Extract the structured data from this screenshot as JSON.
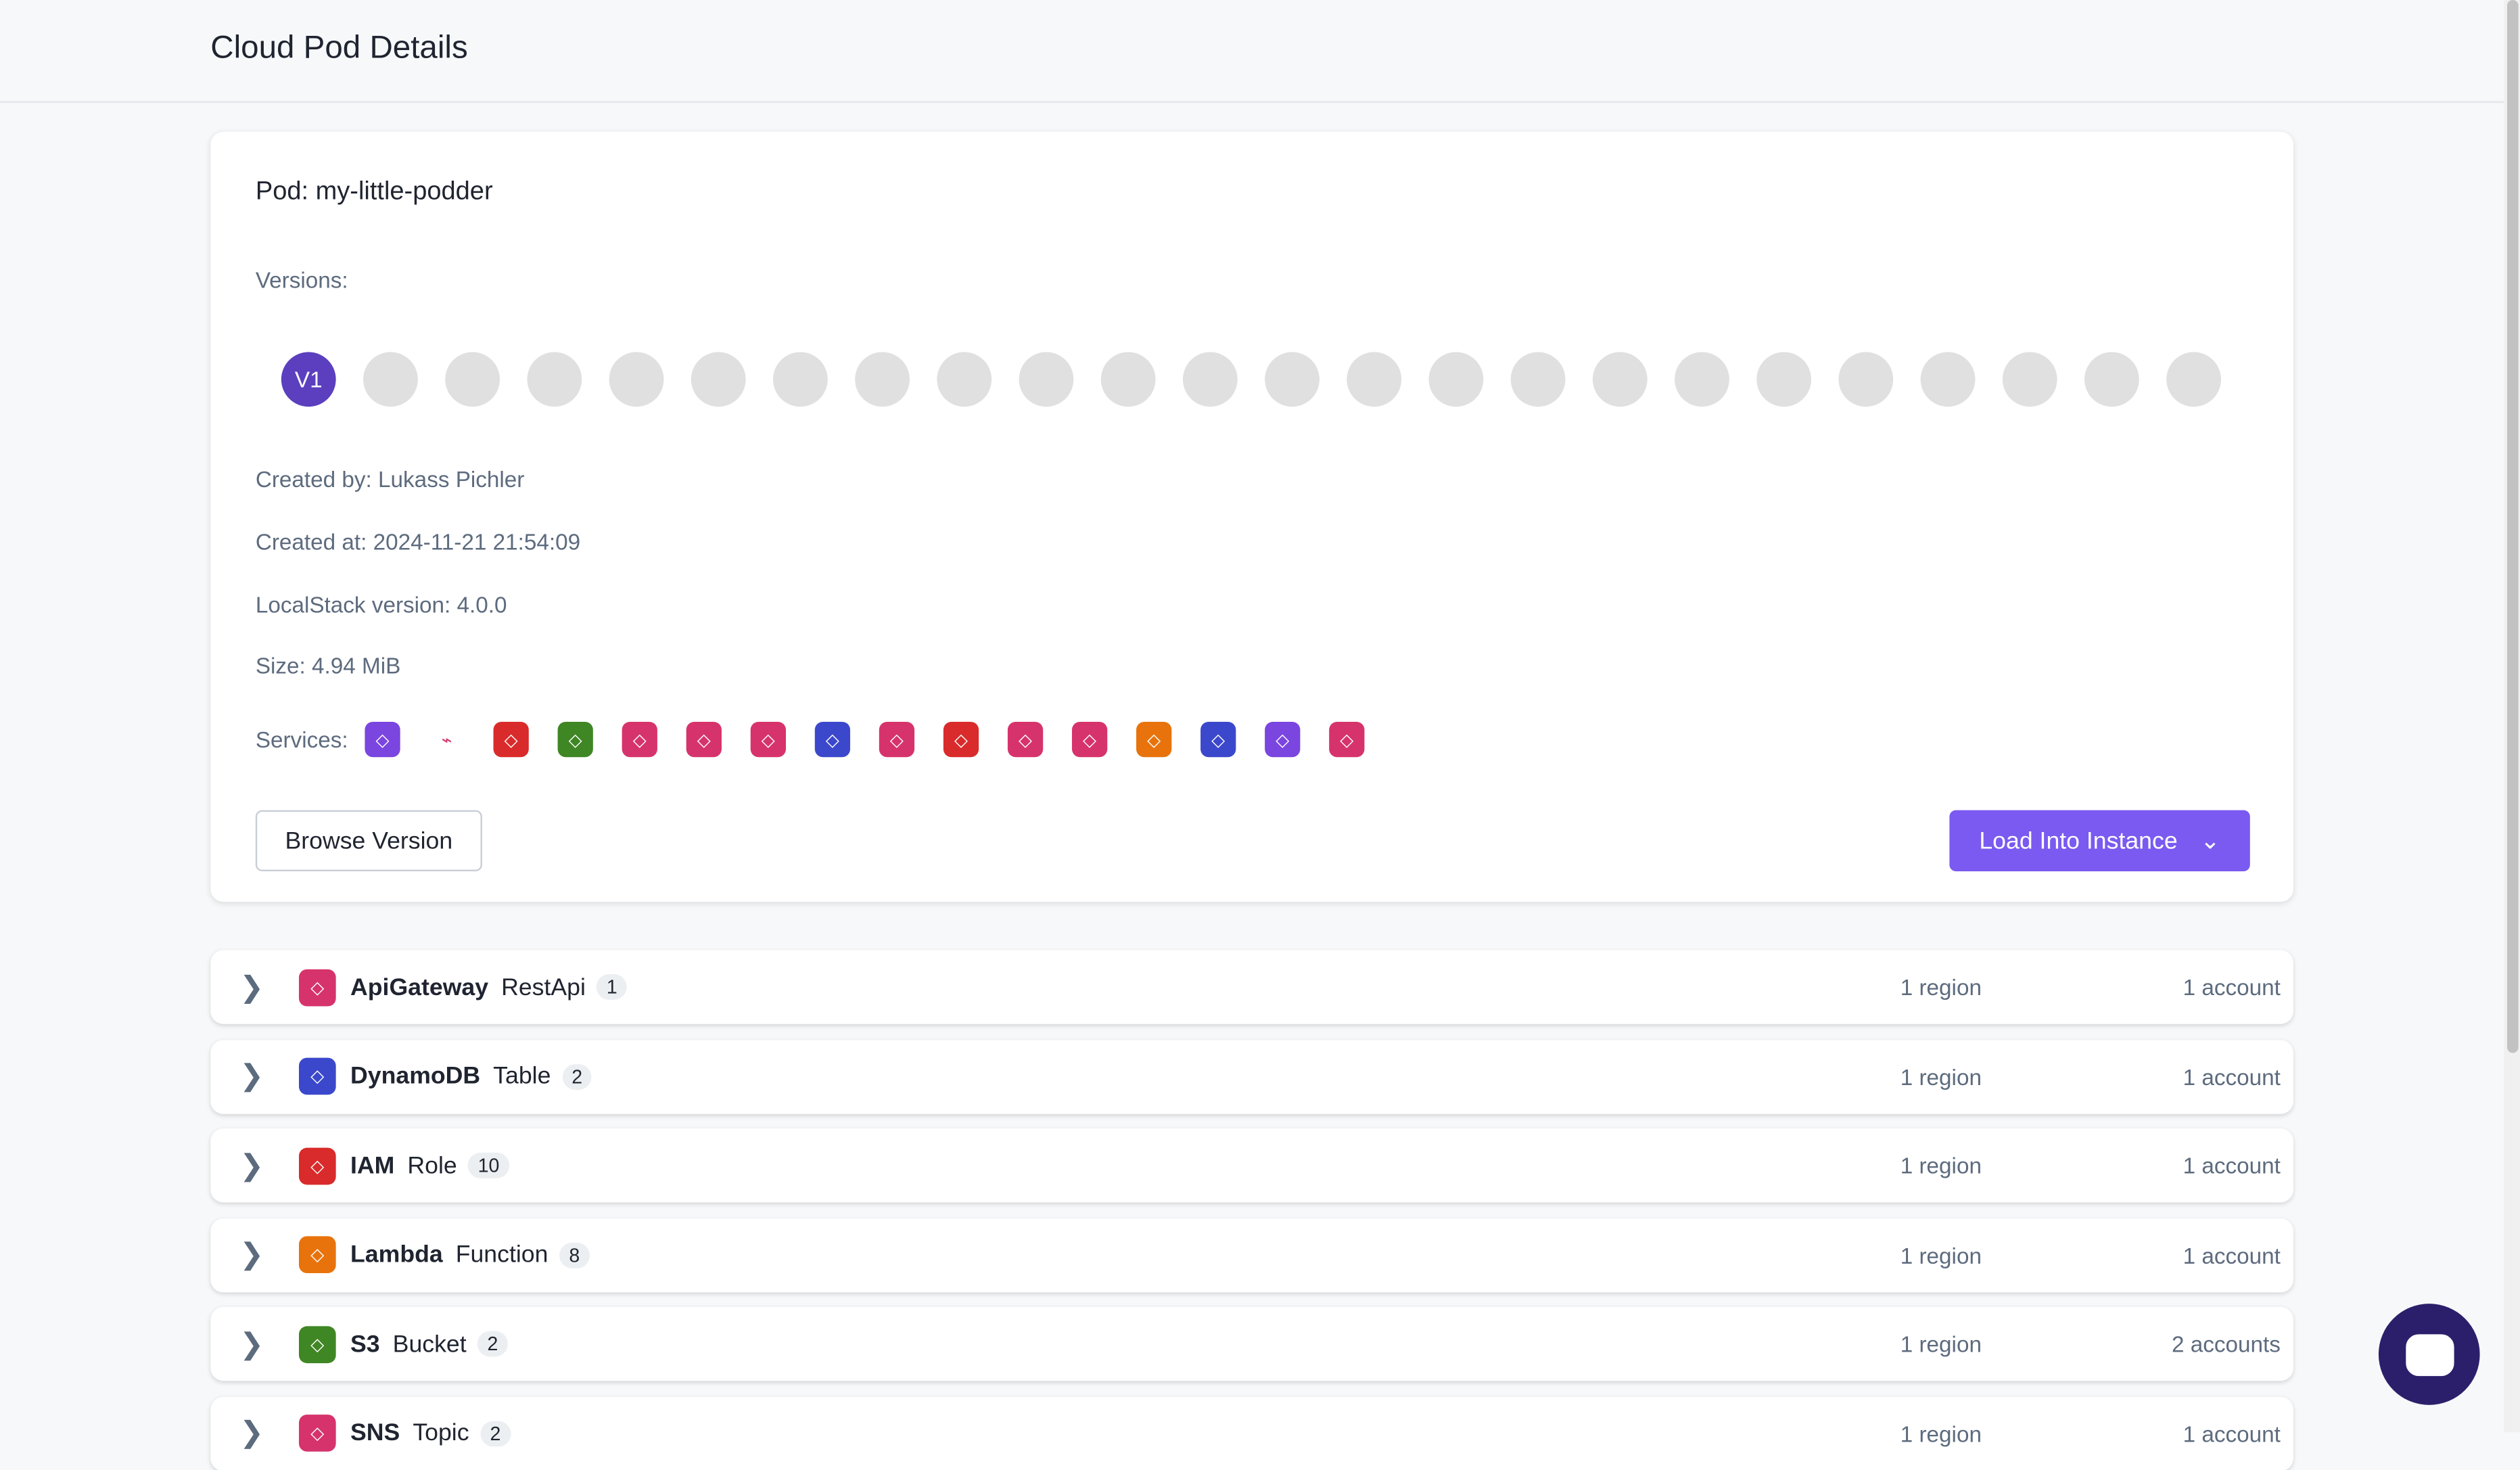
{
  "header": {
    "title": "Cloud Pod Details"
  },
  "pod": {
    "title": "Pod: my-little-podder",
    "versions_label": "Versions:",
    "versions": [
      "V1",
      "",
      "",
      "",
      "",
      "",
      "",
      "",
      "",
      "",
      "",
      "",
      "",
      "",
      "",
      "",
      "",
      "",
      "",
      "",
      "",
      "",
      "",
      ""
    ],
    "created_by": "Created by: Lukass Pichler",
    "created_at": "Created at: 2024-11-21 21:54:09",
    "localstack_version": "LocalStack version: 4.0.0",
    "size": "Size: 4.94 MiB",
    "services_label": "Services:",
    "services": [
      {
        "icon": "cloudfront-icon",
        "color": "#7b45e0"
      },
      {
        "icon": "tag-icon",
        "color": "#ffffff"
      },
      {
        "icon": "iam-icon",
        "color": "#d92b2b"
      },
      {
        "icon": "s3-icon",
        "color": "#3f8624"
      },
      {
        "icon": "eventbridge-icon",
        "color": "#d6336c"
      },
      {
        "icon": "step-functions-icon",
        "color": "#d6336c"
      },
      {
        "icon": "appsync-icon",
        "color": "#d6336c"
      },
      {
        "icon": "dynamodb-icon",
        "color": "#3b48cc"
      },
      {
        "icon": "cloudwatch-icon",
        "color": "#d6336c"
      },
      {
        "icon": "kms-icon",
        "color": "#d92b2b"
      },
      {
        "icon": "sns-icon",
        "color": "#d6336c"
      },
      {
        "icon": "apigateway-icon",
        "color": "#d6336c"
      },
      {
        "icon": "lambda-icon",
        "color": "#e8730c"
      },
      {
        "icon": "dynamodb-streams-icon",
        "color": "#3b48cc"
      },
      {
        "icon": "kinesis-icon",
        "color": "#7b45e0"
      },
      {
        "icon": "apigateway-v2-icon",
        "color": "#d6336c"
      }
    ],
    "browse_label": "Browse Version",
    "load_label": "Load Into Instance"
  },
  "resources": [
    {
      "service": "ApiGateway",
      "type": "RestApi",
      "count": "1",
      "regions": "1 region",
      "accounts": "1 account",
      "color": "#d6336c"
    },
    {
      "service": "DynamoDB",
      "type": "Table",
      "count": "2",
      "regions": "1 region",
      "accounts": "1 account",
      "color": "#3b48cc"
    },
    {
      "service": "IAM",
      "type": "Role",
      "count": "10",
      "regions": "1 region",
      "accounts": "1 account",
      "color": "#d92b2b"
    },
    {
      "service": "Lambda",
      "type": "Function",
      "count": "8",
      "regions": "1 region",
      "accounts": "1 account",
      "color": "#e8730c"
    },
    {
      "service": "S3",
      "type": "Bucket",
      "count": "2",
      "regions": "1 region",
      "accounts": "2 accounts",
      "color": "#3f8624"
    },
    {
      "service": "SNS",
      "type": "Topic",
      "count": "2",
      "regions": "1 region",
      "accounts": "1 account",
      "color": "#d6336c"
    }
  ]
}
